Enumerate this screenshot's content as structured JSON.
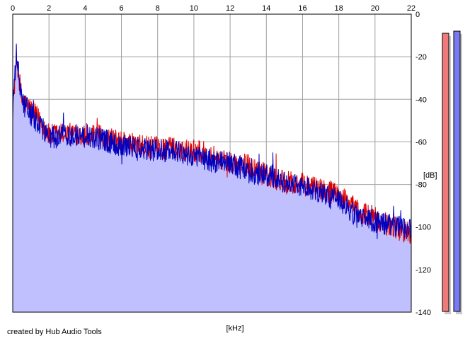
{
  "chart_data": {
    "type": "area",
    "title": "",
    "xlabel": "[kHz]",
    "ylabel": "[dB]",
    "xlim": [
      0,
      22
    ],
    "ylim": [
      -140,
      0
    ],
    "x_ticks": [
      0,
      2,
      4,
      6,
      8,
      10,
      12,
      14,
      16,
      18,
      20,
      22
    ],
    "x_tick_labels": [
      "0",
      "2",
      "4",
      "6",
      "8",
      "10",
      "12",
      "14",
      "16",
      "18",
      "20",
      "22"
    ],
    "y_ticks": [
      0,
      -20,
      -40,
      -60,
      -80,
      -100,
      -120,
      -140
    ],
    "y_tick_labels": [
      "0",
      "-20",
      "-40",
      "-60",
      "-80",
      "-100",
      "-120",
      "-140"
    ],
    "grid": true,
    "legend": "none",
    "series": [
      {
        "channel": "left",
        "color": "#e00000",
        "x": [
          0,
          0.2,
          0.5,
          1,
          1.5,
          2,
          3,
          4,
          5,
          6,
          7,
          8,
          9,
          10,
          11,
          12,
          13,
          14,
          15,
          16,
          17,
          18,
          19,
          20,
          21,
          22
        ],
        "values": [
          -45,
          -20,
          -40,
          -45,
          -50,
          -57,
          -56,
          -56,
          -58,
          -60,
          -62,
          -63,
          -63,
          -64,
          -66,
          -70,
          -71,
          -76,
          -79,
          -80,
          -82,
          -85,
          -92,
          -96,
          -100,
          -103
        ]
      },
      {
        "channel": "right",
        "color": "#0000c0",
        "x": [
          0,
          0.2,
          0.5,
          1,
          1.5,
          2,
          3,
          4,
          5,
          6,
          7,
          8,
          9,
          10,
          11,
          12,
          13,
          14,
          15,
          16,
          17,
          18,
          19,
          20,
          21,
          22
        ],
        "values": [
          -45,
          -19,
          -41,
          -47,
          -52,
          -58,
          -57,
          -57,
          -59,
          -62,
          -63,
          -64,
          -64,
          -67,
          -69,
          -70,
          -74,
          -76,
          -79,
          -81,
          -84,
          -88,
          -95,
          -98,
          -99,
          -101
        ]
      }
    ],
    "level_meters": [
      {
        "channel": "left",
        "color": "#f07a7a",
        "level_db": -9
      },
      {
        "channel": "right",
        "color": "#7a7af0",
        "level_db": -8
      }
    ]
  },
  "style": {
    "fill_color": "#c0c0ff",
    "grid_color": "#a0a0a0",
    "frame_color": "#000000"
  },
  "footer": {
    "credit": "created by Hub Audio Tools"
  }
}
